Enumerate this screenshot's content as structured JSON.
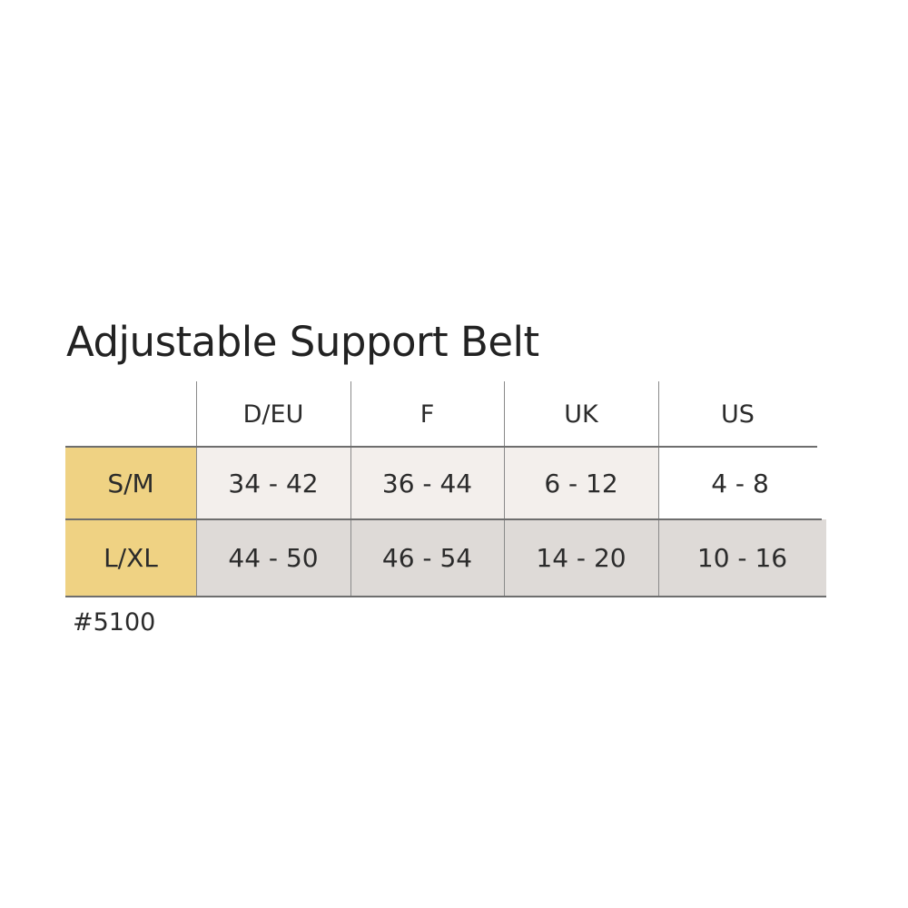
{
  "title": "Adjustable Support Belt",
  "table": {
    "columns": [
      "D/EU",
      "F",
      "UK",
      "US"
    ],
    "rows": [
      {
        "label": "S/M",
        "values": [
          "34 - 42",
          "36 - 44",
          "6 - 12",
          "4 - 8"
        ]
      },
      {
        "label": "L/XL",
        "values": [
          "44 - 50",
          "46 - 54",
          "14 - 20",
          "10 - 16"
        ]
      }
    ]
  },
  "footnote": "#5100",
  "colors": {
    "label_bg": "#efd283",
    "row1_bg": "#f3efec",
    "row2_bg": "#dedad7"
  }
}
